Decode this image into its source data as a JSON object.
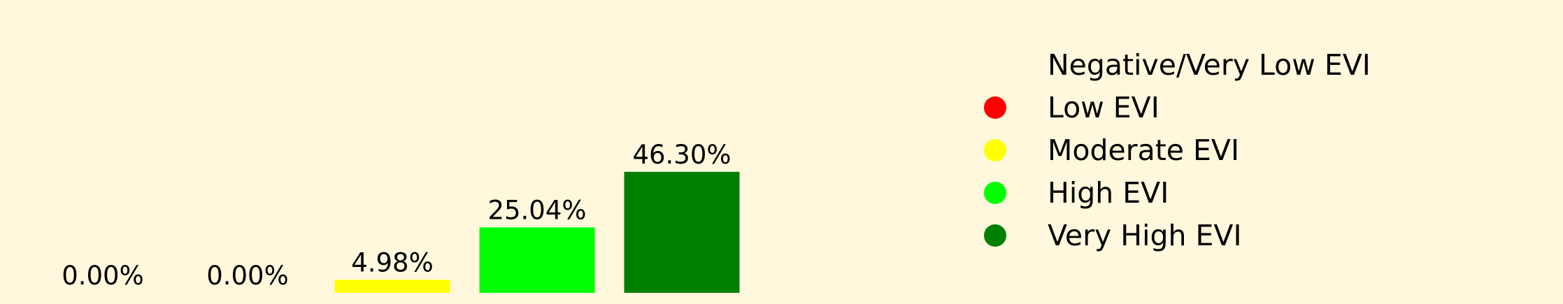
{
  "chart_data": {
    "type": "bar",
    "categories": [
      "Negative/Very Low EVI",
      "Low EVI",
      "Moderate EVI",
      "High EVI",
      "Very High EVI"
    ],
    "values": [
      0.0,
      0.0,
      4.98,
      25.04,
      46.3
    ],
    "data_labels": [
      "0.00%",
      "0.00%",
      "4.98%",
      "25.04%",
      "46.30%"
    ],
    "colors": [
      "#fff8dc",
      "#ff0000",
      "#ffff00",
      "#00ff00",
      "#008000"
    ],
    "title": "",
    "xlabel": "",
    "ylabel": "",
    "ylim": [
      0,
      100
    ],
    "grid": false,
    "legend": {
      "placement": "top-right",
      "entries": [
        "Negative/Very Low EVI",
        "Low EVI",
        "Moderate EVI",
        "High EVI",
        "Very High EVI"
      ]
    }
  },
  "background_color": "#fff8dc"
}
